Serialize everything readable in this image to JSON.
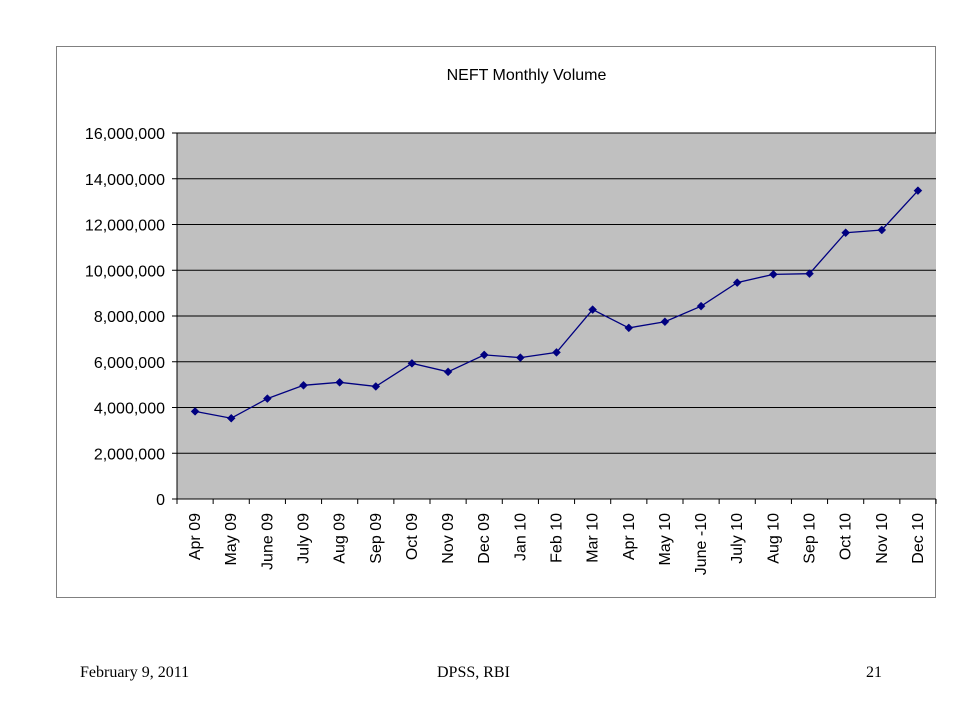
{
  "chart_data": {
    "type": "line",
    "title": "NEFT Monthly Volume",
    "xlabel": "",
    "ylabel": "",
    "categories": [
      "Apr 09",
      "May 09",
      "June 09",
      "July 09",
      "Aug 09",
      "Sep 09",
      "Oct 09",
      "Nov 09",
      "Dec 09",
      "Jan 10",
      "Feb 10",
      "Mar 10",
      "Apr 10",
      "May 10",
      "June -10",
      "July 10",
      "Aug 10",
      "Sep 10",
      "Oct 10",
      "Nov 10",
      "Dec 10"
    ],
    "series": [
      {
        "values": [
          3830000,
          3530000,
          4390000,
          4970000,
          5100000,
          4920000,
          5930000,
          5560000,
          6300000,
          6180000,
          6410000,
          8280000,
          7480000,
          7750000,
          8430000,
          9460000,
          9820000,
          9850000,
          11640000,
          11760000,
          13480000
        ]
      }
    ],
    "ylim": [
      0,
      16000000
    ],
    "yticks": [
      0,
      2000000,
      4000000,
      6000000,
      8000000,
      10000000,
      12000000,
      14000000,
      16000000
    ],
    "ytick_labels": [
      "0",
      "2,000,000",
      "4,000,000",
      "6,000,000",
      "8,000,000",
      "10,000,000",
      "12,000,000",
      "14,000,000",
      "16,000,000"
    ],
    "grid": true,
    "legend": "none",
    "colors": {
      "line": "#000080",
      "plot_bg": "#c0c0c0",
      "grid": "#000000"
    }
  },
  "footer": {
    "date": "February 9, 2011",
    "org": "DPSS, RBI",
    "page": "21"
  }
}
